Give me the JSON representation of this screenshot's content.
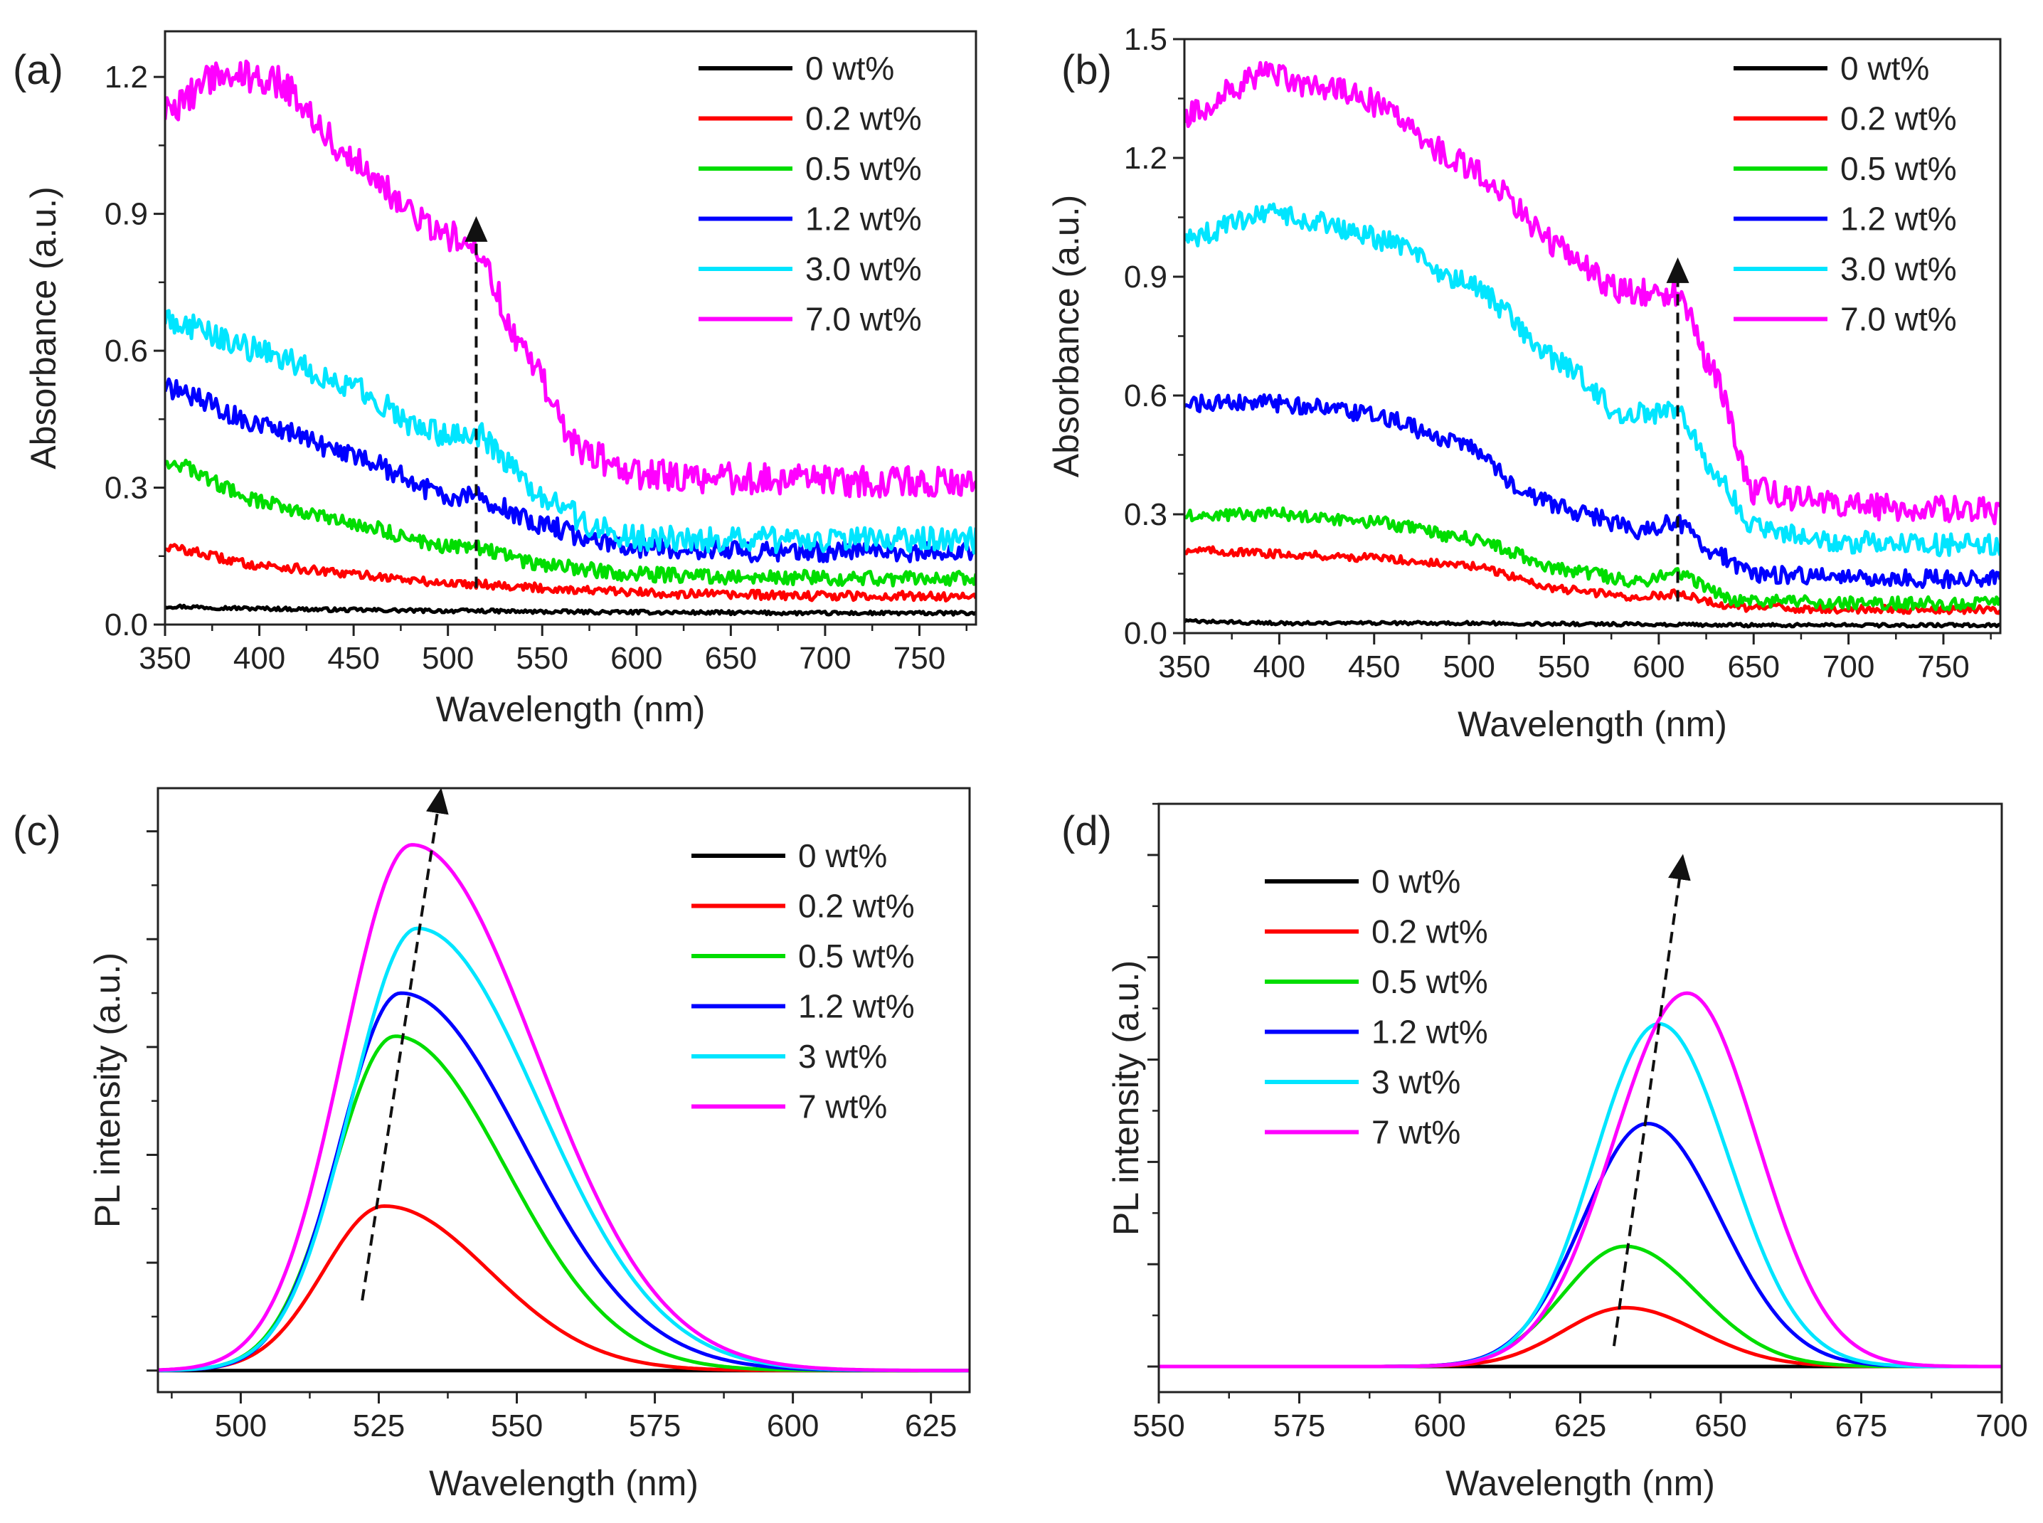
{
  "figure": {
    "panels": [
      "(a)",
      "(b)",
      "(c)",
      "(d)"
    ]
  },
  "chart_data": [
    {
      "panel": "(a)",
      "type": "line",
      "xlabel": "Wavelength (nm)",
      "ylabel": "Absorbance (a.u.)",
      "xlim": [
        350,
        780
      ],
      "ylim": [
        0,
        1.3
      ],
      "xticks": [
        350,
        400,
        450,
        500,
        550,
        600,
        650,
        700,
        750
      ],
      "yticks": [
        0.0,
        0.3,
        0.6,
        0.9,
        1.2
      ],
      "ytick_labels": [
        "0.0",
        "0.3",
        "0.6",
        "0.9",
        "1.2"
      ],
      "show_ytick_labels": true,
      "legend_position": "top-right",
      "arrow": {
        "x": 515,
        "y_start": 0.08,
        "y_end": 0.87
      },
      "series": [
        {
          "name": "0 wt%",
          "color": "#000000",
          "x": [
            350,
            400,
            450,
            500,
            515,
            550,
            600,
            650,
            700,
            780
          ],
          "y": [
            0.04,
            0.035,
            0.032,
            0.03,
            0.03,
            0.028,
            0.027,
            0.026,
            0.025,
            0.025
          ]
        },
        {
          "name": "0.2 wt%",
          "color": "#ff0000",
          "x": [
            350,
            400,
            450,
            500,
            515,
            550,
            600,
            650,
            700,
            780
          ],
          "y": [
            0.17,
            0.13,
            0.11,
            0.09,
            0.09,
            0.08,
            0.07,
            0.065,
            0.063,
            0.062
          ]
        },
        {
          "name": "0.5 wt%",
          "color": "#00dd00",
          "x": [
            350,
            400,
            450,
            500,
            515,
            550,
            600,
            650,
            700,
            780
          ],
          "y": [
            0.36,
            0.27,
            0.22,
            0.17,
            0.17,
            0.13,
            0.11,
            0.105,
            0.102,
            0.1
          ]
        },
        {
          "name": "1.2 wt%",
          "color": "#0000ff",
          "x": [
            350,
            400,
            450,
            500,
            515,
            550,
            580,
            600,
            650,
            700,
            780
          ],
          "y": [
            0.52,
            0.44,
            0.37,
            0.28,
            0.28,
            0.22,
            0.18,
            0.17,
            0.16,
            0.16,
            0.16
          ]
        },
        {
          "name": "3.0 wt%",
          "color": "#00e5ff",
          "x": [
            350,
            400,
            450,
            490,
            515,
            550,
            580,
            600,
            650,
            700,
            780
          ],
          "y": [
            0.67,
            0.6,
            0.52,
            0.42,
            0.42,
            0.28,
            0.21,
            0.19,
            0.185,
            0.185,
            0.185
          ]
        },
        {
          "name": "7.0 wt%",
          "color": "#ff00ff",
          "x": [
            350,
            380,
            410,
            450,
            490,
            515,
            540,
            570,
            600,
            650,
            700,
            780
          ],
          "y": [
            1.12,
            1.21,
            1.19,
            1.02,
            0.87,
            0.83,
            0.6,
            0.38,
            0.33,
            0.32,
            0.315,
            0.31
          ]
        }
      ]
    },
    {
      "panel": "(b)",
      "type": "line",
      "xlabel": "Wavelength (nm)",
      "ylabel": "Absorbance (a.u.)",
      "xlim": [
        350,
        780
      ],
      "ylim": [
        0,
        1.5
      ],
      "xticks": [
        350,
        400,
        450,
        500,
        550,
        600,
        650,
        700,
        750
      ],
      "yticks": [
        0.0,
        0.3,
        0.6,
        0.9,
        1.2,
        1.5
      ],
      "ytick_labels": [
        "0.0",
        "0.3",
        "0.6",
        "0.9",
        "1.2",
        "1.5"
      ],
      "show_ytick_labels": true,
      "legend_position": "top-right",
      "arrow": {
        "x": 610,
        "y_start": 0.08,
        "y_end": 0.92
      },
      "series": [
        {
          "name": "0 wt%",
          "color": "#000000",
          "x": [
            350,
            400,
            500,
            600,
            650,
            700,
            780
          ],
          "y": [
            0.03,
            0.025,
            0.025,
            0.022,
            0.02,
            0.02,
            0.02
          ]
        },
        {
          "name": "0.2 wt%",
          "color": "#ff0000",
          "x": [
            350,
            400,
            450,
            500,
            550,
            590,
            610,
            640,
            700,
            780
          ],
          "y": [
            0.21,
            0.2,
            0.19,
            0.17,
            0.11,
            0.09,
            0.1,
            0.065,
            0.06,
            0.06
          ]
        },
        {
          "name": "0.5 wt%",
          "color": "#00dd00",
          "x": [
            350,
            400,
            450,
            500,
            550,
            590,
            610,
            640,
            700,
            780
          ],
          "y": [
            0.3,
            0.3,
            0.28,
            0.24,
            0.16,
            0.13,
            0.15,
            0.085,
            0.075,
            0.075
          ]
        },
        {
          "name": "1.2 wt%",
          "color": "#0000ff",
          "x": [
            350,
            400,
            450,
            500,
            530,
            560,
            590,
            610,
            630,
            650,
            700,
            780
          ],
          "y": [
            0.58,
            0.58,
            0.55,
            0.47,
            0.35,
            0.3,
            0.26,
            0.28,
            0.2,
            0.15,
            0.14,
            0.135
          ]
        },
        {
          "name": "3.0 wt%",
          "color": "#00e5ff",
          "x": [
            350,
            400,
            450,
            500,
            550,
            580,
            610,
            630,
            650,
            700,
            780
          ],
          "y": [
            1.0,
            1.06,
            1.0,
            0.88,
            0.68,
            0.55,
            0.56,
            0.4,
            0.27,
            0.23,
            0.22
          ]
        },
        {
          "name": "7.0 wt%",
          "color": "#ff00ff",
          "x": [
            350,
            390,
            440,
            500,
            550,
            580,
            610,
            630,
            650,
            700,
            780
          ],
          "y": [
            1.3,
            1.41,
            1.36,
            1.18,
            0.97,
            0.86,
            0.86,
            0.65,
            0.36,
            0.32,
            0.31
          ]
        }
      ]
    },
    {
      "panel": "(c)",
      "type": "line",
      "xlabel": "Wavelength (nm)",
      "ylabel": "PL intensity (a.u.)",
      "xlim": [
        485,
        632
      ],
      "ylim": [
        -0.04,
        1.08
      ],
      "xticks": [
        500,
        525,
        550,
        575,
        600,
        625
      ],
      "yticks": [
        0,
        0.2,
        0.4,
        0.6,
        0.8,
        1.0
      ],
      "ytick_labels": [],
      "show_ytick_labels": false,
      "legend_position": "top-right",
      "arrow": {
        "x1": 522,
        "y1": 0.13,
        "x2": 536,
        "y2": 1.06
      },
      "series": [
        {
          "name": "0 wt%",
          "color": "#000000",
          "x": [
            485,
            632
          ],
          "y": [
            0,
            0
          ]
        },
        {
          "name": "0.2 wt%",
          "color": "#ff0000",
          "peak": 526,
          "amplitude": 0.305,
          "sigma_left": 11,
          "sigma_right": 19
        },
        {
          "name": "0.5 wt%",
          "color": "#00dd00",
          "peak": 528,
          "amplitude": 0.62,
          "sigma_left": 11,
          "sigma_right": 20
        },
        {
          "name": "1.2 wt%",
          "color": "#0000ff",
          "peak": 529,
          "amplitude": 0.7,
          "sigma_left": 11,
          "sigma_right": 22
        },
        {
          "name": "3 wt%",
          "color": "#00e5ff",
          "peak": 532,
          "amplitude": 0.82,
          "sigma_left": 12,
          "sigma_right": 22
        },
        {
          "name": "7 wt%",
          "color": "#ff00ff",
          "peak": 531,
          "amplitude": 0.975,
          "sigma_left": 12.5,
          "sigma_right": 22.5
        }
      ]
    },
    {
      "panel": "(d)",
      "type": "line",
      "xlabel": "Wavelength (nm)",
      "ylabel": "PL intensity (a.u.)",
      "xlim": [
        550,
        700
      ],
      "ylim": [
        -0.05,
        1.1
      ],
      "xticks": [
        550,
        575,
        600,
        625,
        650,
        675,
        700
      ],
      "yticks": [
        0,
        0.2,
        0.4,
        0.6,
        0.8,
        1.0
      ],
      "ytick_labels": [],
      "show_ytick_labels": false,
      "legend_position": "top-left",
      "arrow": {
        "x1": 631,
        "y1": 0.04,
        "x2": 643,
        "y2": 0.98
      },
      "series": [
        {
          "name": "0 wt%",
          "color": "#000000",
          "x": [
            550,
            700
          ],
          "y": [
            0,
            0
          ]
        },
        {
          "name": "0.2 wt%",
          "color": "#ff0000",
          "peak": 633,
          "amplitude": 0.115,
          "sigma_left": 11,
          "sigma_right": 13
        },
        {
          "name": "0.5 wt%",
          "color": "#00dd00",
          "peak": 633,
          "amplitude": 0.235,
          "sigma_left": 11,
          "sigma_right": 13
        },
        {
          "name": "1.2 wt%",
          "color": "#0000ff",
          "peak": 637,
          "amplitude": 0.475,
          "sigma_left": 11.5,
          "sigma_right": 13
        },
        {
          "name": "3 wt%",
          "color": "#00e5ff",
          "peak": 639,
          "amplitude": 0.67,
          "sigma_left": 11.5,
          "sigma_right": 12.5
        },
        {
          "name": "7 wt%",
          "color": "#ff00ff",
          "peak": 644,
          "amplitude": 0.73,
          "sigma_left": 13,
          "sigma_right": 12.5
        }
      ]
    }
  ]
}
